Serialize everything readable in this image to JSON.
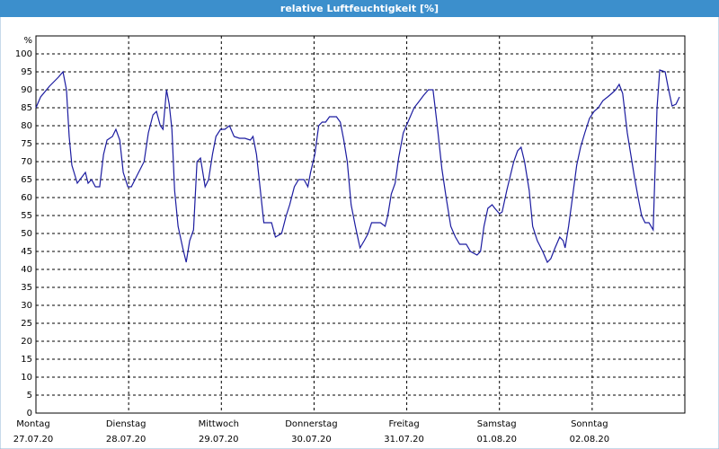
{
  "window": {
    "title": "relative Luftfeuchtigkeit [%]"
  },
  "chart_data": {
    "type": "line",
    "y_label": "%",
    "color": "#1c1ca0",
    "grid": true,
    "xlim": [
      0,
      168
    ],
    "ylim": [
      0,
      105
    ],
    "yticks": [
      0,
      5,
      10,
      15,
      20,
      25,
      30,
      35,
      40,
      45,
      50,
      55,
      60,
      65,
      70,
      75,
      80,
      85,
      90,
      95,
      100
    ],
    "xticks": [
      {
        "value": 0,
        "label": "Montag\n27.07.20"
      },
      {
        "value": 24,
        "label": "Dienstag\n28.07.20"
      },
      {
        "value": 48,
        "label": "Mittwoch\n29.07.20"
      },
      {
        "value": 72,
        "label": "Donnerstag\n30.07.20"
      },
      {
        "value": 96,
        "label": "Freitag\n31.07.20"
      },
      {
        "value": 120,
        "label": "Samstag\n01.08.20"
      },
      {
        "value": 144,
        "label": "Sonntag\n02.08.20"
      }
    ],
    "x": [
      0,
      1.2,
      3.5,
      5.8,
      7.0,
      7.9,
      8.6,
      9.3,
      10.7,
      12.1,
      12.8,
      13.5,
      14.4,
      15.4,
      16.5,
      17.5,
      18.4,
      19.8,
      20.7,
      21.7,
      22.6,
      23.8,
      24.7,
      26.1,
      28.0,
      29.1,
      30.3,
      31.2,
      32.2,
      32.9,
      33.8,
      34.5,
      35.2,
      35.9,
      36.8,
      38.0,
      38.9,
      39.8,
      40.8,
      41.7,
      42.6,
      43.8,
      44.7,
      45.7,
      46.6,
      47.8,
      48.9,
      50.1,
      51.3,
      52.7,
      54.1,
      55.5,
      56.2,
      57.1,
      58.0,
      59.0,
      60.3,
      61.0,
      62.0,
      63.6,
      64.8,
      65.7,
      66.9,
      68.0,
      69.4,
      70.4,
      71.1,
      72.2,
      73.2,
      74.1,
      75.0,
      76.0,
      77.8,
      78.8,
      79.7,
      80.6,
      81.6,
      82.7,
      83.9,
      85.0,
      86.0,
      86.9,
      88.1,
      89.2,
      90.4,
      91.1,
      92.0,
      93.0,
      93.9,
      95.1,
      96.7,
      97.9,
      99.0,
      100.4,
      101.6,
      102.8,
      103.9,
      105.1,
      106.2,
      107.4,
      108.6,
      109.7,
      111.4,
      112.5,
      114.2,
      115.1,
      116.0,
      117.0,
      118.1,
      118.8,
      120.0,
      120.7,
      121.9,
      122.8,
      123.7,
      124.7,
      125.6,
      126.5,
      127.7,
      128.6,
      129.8,
      131.2,
      132.4,
      133.3,
      134.4,
      135.6,
      136.5,
      137.0,
      137.9,
      138.9,
      140.0,
      141.0,
      142.1,
      143.3,
      144.5,
      145.6,
      146.8,
      148.0,
      149.1,
      150.1,
      151.0,
      151.9,
      153.1,
      154.0,
      154.9,
      155.9,
      156.8,
      157.7,
      158.7,
      159.8,
      160.8,
      161.5,
      162.9,
      163.8,
      164.7,
      165.7,
      166.6
    ],
    "values": [
      85,
      88,
      91,
      93.5,
      95,
      90,
      77,
      69,
      64,
      66,
      67,
      64,
      65,
      63,
      63,
      72,
      76,
      77,
      79,
      76,
      67,
      63,
      63,
      66,
      70,
      78,
      83,
      84,
      80,
      79,
      90,
      86,
      79,
      62,
      52,
      46,
      42,
      48,
      51,
      70,
      71,
      63,
      65,
      72,
      77,
      79,
      79,
      80,
      77,
      76.5,
      76.5,
      76,
      77,
      72,
      63,
      53,
      53,
      53,
      49,
      50,
      55,
      58,
      63,
      65,
      65,
      63,
      67,
      72,
      80,
      81,
      81,
      82.5,
      82.5,
      81,
      76,
      70,
      58,
      52,
      46,
      48,
      50,
      53,
      53,
      53,
      52,
      55,
      61,
      64,
      71,
      78,
      82,
      85,
      86.5,
      88.5,
      90,
      90,
      80,
      68,
      60,
      52,
      49,
      47,
      47,
      45,
      44,
      45,
      52,
      57,
      58,
      57,
      55.5,
      56,
      62,
      66,
      70,
      73,
      74,
      70,
      62,
      52,
      48,
      45,
      42,
      43,
      46,
      49,
      48,
      46,
      52,
      60,
      69,
      74,
      78,
      82,
      84,
      85,
      87,
      88,
      89,
      90,
      91.5,
      89,
      78,
      72,
      66,
      60,
      55,
      53,
      53,
      51,
      85,
      95.5,
      95,
      90,
      85.5,
      86,
      88
    ]
  }
}
